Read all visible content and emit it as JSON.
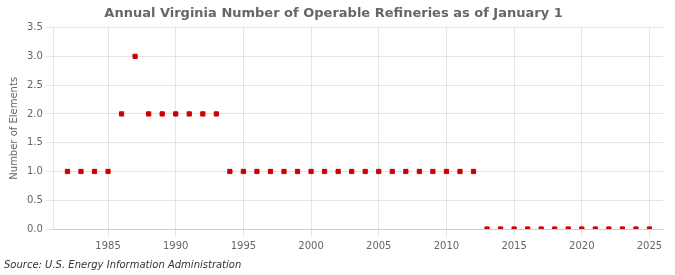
{
  "chart_data": {
    "type": "scatter",
    "title": "Annual Virginia Number of Operable Refineries as of January 1",
    "ylabel": "Number of Elements",
    "source": "Source: U.S. Energy Information Administration",
    "color": "#cc0000",
    "marker": "square",
    "x": [
      1982,
      1983,
      1984,
      1985,
      1986,
      1987,
      1988,
      1989,
      1990,
      1991,
      1992,
      1993,
      1994,
      1995,
      1996,
      1997,
      1998,
      1999,
      2000,
      2001,
      2002,
      2003,
      2004,
      2005,
      2006,
      2007,
      2008,
      2009,
      2010,
      2011,
      2012,
      2013,
      2014,
      2015,
      2016,
      2017,
      2018,
      2019,
      2020,
      2021,
      2022,
      2023,
      2024,
      2025
    ],
    "values": [
      1,
      1,
      1,
      1,
      2,
      3,
      2,
      2,
      2,
      2,
      2,
      2,
      1,
      1,
      1,
      1,
      1,
      1,
      1,
      1,
      1,
      1,
      1,
      1,
      1,
      1,
      1,
      1,
      1,
      1,
      1,
      0,
      0,
      0,
      0,
      0,
      0,
      0,
      0,
      0,
      0,
      0,
      0,
      0
    ],
    "xlim": [
      1981,
      2026
    ],
    "xticks": [
      1985,
      1990,
      1995,
      2000,
      2005,
      2010,
      2015,
      2020,
      2025
    ],
    "ylim": [
      0.0,
      3.5
    ],
    "yticks": [
      {
        "value": 0,
        "label": "0.0"
      },
      0.5,
      {
        "value": 1,
        "label": "1.0"
      },
      1.5,
      {
        "value": 2,
        "label": "2.0"
      },
      2.5,
      {
        "value": 3,
        "label": "3.0"
      },
      3.5
    ],
    "grid": true
  }
}
